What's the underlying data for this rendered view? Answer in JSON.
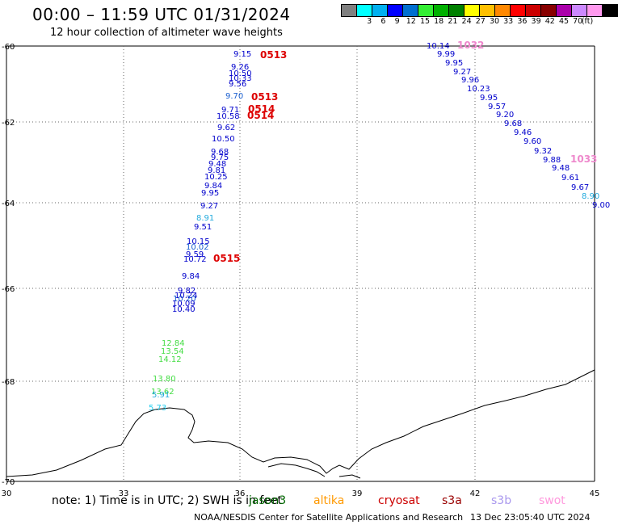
{
  "header": {
    "title": "00:00 – 11:59 UTC 01/31/2024",
    "subtitle": "12 hour collection of altimeter wave heights"
  },
  "colorbar": {
    "units": "(ft)",
    "swatches": [
      {
        "label": "",
        "color": "#808080"
      },
      {
        "label": "3",
        "color": "#00ffff"
      },
      {
        "label": "6",
        "color": "#00b0f0"
      },
      {
        "label": "9",
        "color": "#0000ff"
      },
      {
        "label": "12",
        "color": "#006fd0"
      },
      {
        "label": "15",
        "color": "#33ee33"
      },
      {
        "label": "18",
        "color": "#00b000"
      },
      {
        "label": "21",
        "color": "#008000"
      },
      {
        "label": "24",
        "color": "#ffff00"
      },
      {
        "label": "27",
        "color": "#ffc000"
      },
      {
        "label": "30",
        "color": "#ff8800"
      },
      {
        "label": "33",
        "color": "#ff0000"
      },
      {
        "label": "36",
        "color": "#cc0000"
      },
      {
        "label": "39",
        "color": "#880000"
      },
      {
        "label": "42",
        "color": "#aa00aa"
      },
      {
        "label": "45",
        "color": "#cc88ff"
      },
      {
        "label": "70",
        "color": "#ff99ee"
      },
      {
        "label": "",
        "color": "#000000"
      }
    ]
  },
  "axes": {
    "lon_ticks": [
      30,
      33,
      36,
      39,
      42,
      45
    ],
    "lat_ticks": [
      -60,
      -62,
      -64,
      -66,
      -68,
      -70
    ]
  },
  "track1": {
    "values": [
      "9.15",
      "9.26",
      "10.50",
      "10.33",
      "9.56",
      "9.70",
      "9.71",
      "10.58",
      "9.62",
      "10.50",
      "9.68",
      "9.75",
      "9.48",
      "9.81",
      "10.25",
      "9.84",
      "9.95",
      "9.27",
      "8.91",
      "9.51",
      "10.15",
      "10.02",
      "9.59",
      "10.72",
      "9.84",
      "9.82",
      "10.24",
      "10.20",
      "10.09",
      "10.40",
      "12.84",
      "13.54",
      "14.12",
      "13.80",
      "13.62",
      "5.91",
      "5.73"
    ],
    "colors": [
      "#0000cc",
      "#0000cc",
      "#0000cc",
      "#0000cc",
      "#0000cc",
      "#1a5fd0",
      "#0000cc",
      "#0000cc",
      "#0000cc",
      "#0000cc",
      "#0000cc",
      "#0000cc",
      "#0000cc",
      "#0000cc",
      "#0000cc",
      "#0000cc",
      "#0000cc",
      "#0000cc",
      "#22aadd",
      "#0000cc",
      "#0000cc",
      "#1a5fd0",
      "#0000cc",
      "#0000cc",
      "#0000cc",
      "#0000cc",
      "#0000cc",
      "#1a5fd0",
      "#0000cc",
      "#0000cc",
      "#44dd44",
      "#44dd44",
      "#44dd44",
      "#44dd44",
      "#44dd44",
      "#22aadd",
      "#22ccee"
    ]
  },
  "track2": {
    "values": [
      "10.14",
      "9.99",
      "9.95",
      "9.27",
      "9.96",
      "10.23",
      "9.95",
      "9.57",
      "9.20",
      "9.68",
      "9.46",
      "9.60",
      "9.32",
      "9.88",
      "9.48",
      "9.61",
      "9.67",
      "8.90",
      "9.00"
    ],
    "colors": [
      "#0000cc",
      "#0000cc",
      "#0000cc",
      "#0000cc",
      "#0000cc",
      "#0000cc",
      "#0000cc",
      "#0000cc",
      "#0000cc",
      "#0000cc",
      "#0000cc",
      "#0000cc",
      "#0000cc",
      "#0000cc",
      "#0000cc",
      "#0000cc",
      "#0000cc",
      "#22aadd",
      "#0000cc"
    ]
  },
  "time_labels": [
    {
      "text": "0513",
      "color": "#dd0000"
    },
    {
      "text": "0513",
      "color": "#dd0000"
    },
    {
      "text": "0514",
      "color": "#dd0000"
    },
    {
      "text": "0514",
      "color": "#dd0000"
    },
    {
      "text": "0515",
      "color": "#dd0000"
    },
    {
      "text": "1032",
      "color": "#ee88cc"
    },
    {
      "text": "1033",
      "color": "#ee88cc"
    }
  ],
  "footer": {
    "note": "note:  1) Time is in UTC;  2) SWH is in feet",
    "satellites": [
      {
        "name": "jason3",
        "color": "#006600"
      },
      {
        "name": "altika",
        "color": "#ff9900"
      },
      {
        "name": "cryosat",
        "color": "#cc0000"
      },
      {
        "name": "s3a",
        "color": "#990000"
      },
      {
        "name": "s3b",
        "color": "#aa99ee"
      },
      {
        "name": "swot",
        "color": "#ff99dd"
      }
    ],
    "credit": "NOAA/NESDIS Center for Satellite Applications and Research",
    "timestamp": "13 Dec 23:05:40 UTC 2024"
  }
}
